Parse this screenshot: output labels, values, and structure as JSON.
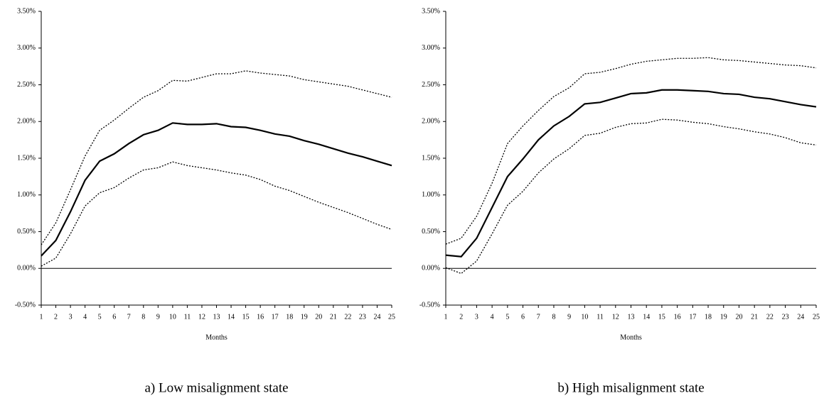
{
  "chart_data": [
    {
      "type": "line",
      "caption": "a) Low misalignment state",
      "x_label": "Months",
      "x": [
        1,
        2,
        3,
        4,
        5,
        6,
        7,
        8,
        9,
        10,
        11,
        12,
        13,
        14,
        15,
        16,
        17,
        18,
        19,
        20,
        21,
        22,
        23,
        24,
        25
      ],
      "xlim": [
        1,
        25
      ],
      "xticks": [
        1,
        2,
        3,
        4,
        5,
        6,
        7,
        8,
        9,
        10,
        11,
        12,
        13,
        14,
        15,
        16,
        17,
        18,
        19,
        20,
        21,
        22,
        23,
        24,
        25
      ],
      "ylim": [
        -0.5,
        3.5
      ],
      "yticks": [
        {
          "value": -0.5,
          "label": "-0.50%"
        },
        {
          "value": 0,
          "label": "0.00%"
        },
        {
          "value": 0.5,
          "label": "0.50%"
        },
        {
          "value": 1,
          "label": "1.00%"
        },
        {
          "value": 1.5,
          "label": "1.50%"
        },
        {
          "value": 2,
          "label": "2.00%"
        },
        {
          "value": 2.5,
          "label": "2.50%"
        },
        {
          "value": 3,
          "label": "3.00%"
        },
        {
          "value": 3.5,
          "label": "3.50%"
        }
      ],
      "series": [
        {
          "color": "#000000",
          "style": "dotted",
          "values": [
            0.32,
            0.62,
            1.07,
            1.53,
            1.88,
            2.02,
            2.18,
            2.33,
            2.42,
            2.56,
            2.55,
            2.6,
            2.65,
            2.65,
            2.69,
            2.66,
            2.64,
            2.62,
            2.57,
            2.54,
            2.51,
            2.48,
            2.43,
            2.38,
            2.33
          ]
        },
        {
          "color": "#000000",
          "style": "solid",
          "values": [
            0.17,
            0.38,
            0.77,
            1.2,
            1.46,
            1.56,
            1.7,
            1.82,
            1.88,
            1.98,
            1.96,
            1.96,
            1.97,
            1.93,
            1.92,
            1.88,
            1.83,
            1.8,
            1.74,
            1.69,
            1.63,
            1.57,
            1.52,
            1.46,
            1.4
          ]
        },
        {
          "color": "#000000",
          "style": "dotted",
          "values": [
            0.03,
            0.14,
            0.47,
            0.85,
            1.03,
            1.1,
            1.23,
            1.34,
            1.37,
            1.45,
            1.4,
            1.37,
            1.34,
            1.3,
            1.27,
            1.21,
            1.12,
            1.06,
            0.98,
            0.9,
            0.83,
            0.76,
            0.68,
            0.6,
            0.53
          ]
        }
      ]
    },
    {
      "type": "line",
      "caption": "b) High misalignment state",
      "x_label": "Months",
      "x": [
        1,
        2,
        3,
        4,
        5,
        6,
        7,
        8,
        9,
        10,
        11,
        12,
        13,
        14,
        15,
        16,
        17,
        18,
        19,
        20,
        21,
        22,
        23,
        24,
        25
      ],
      "xlim": [
        1,
        25
      ],
      "xticks": [
        1,
        2,
        3,
        4,
        5,
        6,
        7,
        8,
        9,
        10,
        11,
        12,
        13,
        14,
        15,
        16,
        17,
        18,
        19,
        20,
        21,
        22,
        23,
        24,
        25
      ],
      "ylim": [
        -0.5,
        3.5
      ],
      "yticks": [
        {
          "value": -0.5,
          "label": "-0.50%"
        },
        {
          "value": 0,
          "label": "0.00%"
        },
        {
          "value": 0.5,
          "label": "0.50%"
        },
        {
          "value": 1,
          "label": "1.00%"
        },
        {
          "value": 1.5,
          "label": "1.50%"
        },
        {
          "value": 2,
          "label": "2.00%"
        },
        {
          "value": 2.5,
          "label": "2.50%"
        },
        {
          "value": 3,
          "label": "3.00%"
        },
        {
          "value": 3.5,
          "label": "3.50%"
        }
      ],
      "series": [
        {
          "color": "#000000",
          "style": "dotted",
          "values": [
            0.33,
            0.41,
            0.71,
            1.16,
            1.7,
            1.94,
            2.15,
            2.34,
            2.46,
            2.65,
            2.67,
            2.72,
            2.78,
            2.82,
            2.84,
            2.86,
            2.86,
            2.87,
            2.84,
            2.83,
            2.81,
            2.79,
            2.77,
            2.76,
            2.73
          ]
        },
        {
          "color": "#000000",
          "style": "solid",
          "values": [
            0.18,
            0.16,
            0.41,
            0.83,
            1.25,
            1.49,
            1.75,
            1.94,
            2.07,
            2.24,
            2.26,
            2.32,
            2.38,
            2.39,
            2.43,
            2.43,
            2.42,
            2.41,
            2.38,
            2.37,
            2.33,
            2.31,
            2.27,
            2.23,
            2.2
          ]
        },
        {
          "color": "#000000",
          "style": "dotted",
          "values": [
            0.01,
            -0.07,
            0.1,
            0.47,
            0.86,
            1.05,
            1.3,
            1.49,
            1.63,
            1.81,
            1.84,
            1.92,
            1.97,
            1.98,
            2.03,
            2.02,
            1.99,
            1.97,
            1.93,
            1.9,
            1.86,
            1.83,
            1.78,
            1.71,
            1.68
          ]
        }
      ]
    }
  ]
}
